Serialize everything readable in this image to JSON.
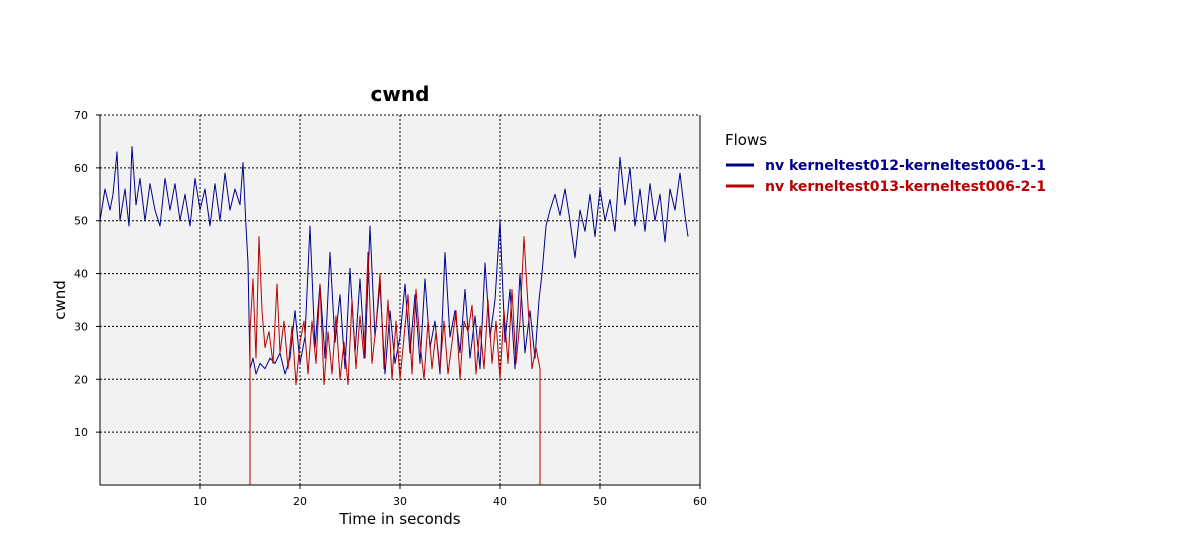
{
  "chart_data": {
    "type": "line",
    "title": "cwnd",
    "xlabel": "Time in seconds",
    "ylabel": "cwnd",
    "xlim": [
      0,
      60
    ],
    "ylim": [
      0,
      70
    ],
    "xticks": [
      10,
      20,
      30,
      40,
      50,
      60
    ],
    "yticks": [
      10,
      20,
      30,
      40,
      50,
      60,
      70
    ],
    "grid": true,
    "legend_title": "Flows",
    "legend_position": "right",
    "colors": {
      "plot_bg": "#f2f2f2",
      "grid": "#000000"
    },
    "series": [
      {
        "name": "nv kerneltest012-kerneltest006-1-1",
        "color": "#00008b",
        "points": [
          [
            0,
            50
          ],
          [
            0.5,
            56
          ],
          [
            1,
            52
          ],
          [
            1.3,
            55
          ],
          [
            1.7,
            63
          ],
          [
            2,
            50
          ],
          [
            2.5,
            56
          ],
          [
            2.9,
            49
          ],
          [
            3.2,
            64
          ],
          [
            3.6,
            53
          ],
          [
            4,
            58
          ],
          [
            4.5,
            50
          ],
          [
            5,
            57
          ],
          [
            5.5,
            52
          ],
          [
            6,
            49
          ],
          [
            6.5,
            58
          ],
          [
            7,
            52
          ],
          [
            7.5,
            57
          ],
          [
            8,
            50
          ],
          [
            8.5,
            55
          ],
          [
            9,
            49
          ],
          [
            9.5,
            58
          ],
          [
            10,
            52
          ],
          [
            10.5,
            56
          ],
          [
            11,
            49
          ],
          [
            11.5,
            57
          ],
          [
            12,
            50
          ],
          [
            12.5,
            59
          ],
          [
            13,
            52
          ],
          [
            13.5,
            56
          ],
          [
            14,
            53
          ],
          [
            14.3,
            61
          ],
          [
            14.6,
            49
          ],
          [
            14.8,
            42
          ],
          [
            15,
            22
          ],
          [
            15.3,
            24
          ],
          [
            15.6,
            21
          ],
          [
            16,
            23
          ],
          [
            16.5,
            22
          ],
          [
            17,
            24
          ],
          [
            17.5,
            23
          ],
          [
            18,
            25
          ],
          [
            18.5,
            21
          ],
          [
            19,
            24
          ],
          [
            19.5,
            33
          ],
          [
            20,
            23
          ],
          [
            20.5,
            28
          ],
          [
            21,
            49
          ],
          [
            21.5,
            26
          ],
          [
            22,
            38
          ],
          [
            22.5,
            24
          ],
          [
            23,
            44
          ],
          [
            23.5,
            27
          ],
          [
            24,
            36
          ],
          [
            24.5,
            22
          ],
          [
            25,
            41
          ],
          [
            25.5,
            25
          ],
          [
            26,
            39
          ],
          [
            26.5,
            24
          ],
          [
            27,
            49
          ],
          [
            27.5,
            28
          ],
          [
            28,
            38
          ],
          [
            28.5,
            21
          ],
          [
            29,
            33
          ],
          [
            29.5,
            23
          ],
          [
            30,
            28
          ],
          [
            30.5,
            38
          ],
          [
            31,
            25
          ],
          [
            31.5,
            36
          ],
          [
            32,
            23
          ],
          [
            32.5,
            39
          ],
          [
            33,
            26
          ],
          [
            33.5,
            31
          ],
          [
            34,
            21
          ],
          [
            34.5,
            44
          ],
          [
            35,
            28
          ],
          [
            35.5,
            33
          ],
          [
            36,
            25
          ],
          [
            36.5,
            37
          ],
          [
            37,
            24
          ],
          [
            37.5,
            32
          ],
          [
            38,
            22
          ],
          [
            38.5,
            42
          ],
          [
            39,
            28
          ],
          [
            39.5,
            35
          ],
          [
            40,
            50
          ],
          [
            40.5,
            27
          ],
          [
            41,
            37
          ],
          [
            41.5,
            22
          ],
          [
            42,
            40
          ],
          [
            42.5,
            25
          ],
          [
            43,
            33
          ],
          [
            43.5,
            24
          ],
          [
            43.9,
            35
          ],
          [
            44.2,
            40
          ],
          [
            44.6,
            49
          ],
          [
            45,
            52
          ],
          [
            45.5,
            55
          ],
          [
            46,
            51
          ],
          [
            46.5,
            56
          ],
          [
            47,
            50
          ],
          [
            47.5,
            43
          ],
          [
            48,
            52
          ],
          [
            48.5,
            48
          ],
          [
            49,
            55
          ],
          [
            49.5,
            47
          ],
          [
            50,
            56
          ],
          [
            50.5,
            50
          ],
          [
            51,
            54
          ],
          [
            51.5,
            48
          ],
          [
            52,
            62
          ],
          [
            52.5,
            53
          ],
          [
            53,
            60
          ],
          [
            53.5,
            49
          ],
          [
            54,
            56
          ],
          [
            54.5,
            48
          ],
          [
            55,
            57
          ],
          [
            55.5,
            50
          ],
          [
            56,
            55
          ],
          [
            56.5,
            46
          ],
          [
            57,
            56
          ],
          [
            57.5,
            52
          ],
          [
            58,
            59
          ],
          [
            58.5,
            51
          ],
          [
            58.8,
            47
          ]
        ]
      },
      {
        "name": "nv kerneltest013-kerneltest006-2-1",
        "color": "#b80000",
        "points": [
          [
            0,
            0
          ],
          [
            15,
            0
          ],
          [
            15,
            29
          ],
          [
            15.3,
            39
          ],
          [
            15.6,
            24
          ],
          [
            15.9,
            47
          ],
          [
            16.2,
            33
          ],
          [
            16.5,
            26
          ],
          [
            16.9,
            29
          ],
          [
            17.3,
            23
          ],
          [
            17.7,
            38
          ],
          [
            18,
            25
          ],
          [
            18.4,
            31
          ],
          [
            18.8,
            22
          ],
          [
            19.2,
            30
          ],
          [
            19.6,
            19
          ],
          [
            20,
            27
          ],
          [
            20.4,
            31
          ],
          [
            20.8,
            21
          ],
          [
            21.2,
            31
          ],
          [
            21.6,
            23
          ],
          [
            22,
            38
          ],
          [
            22.4,
            19
          ],
          [
            22.8,
            29
          ],
          [
            23.2,
            21
          ],
          [
            23.6,
            32
          ],
          [
            24,
            20
          ],
          [
            24.4,
            27
          ],
          [
            24.8,
            19
          ],
          [
            25.2,
            35
          ],
          [
            25.6,
            22
          ],
          [
            26,
            32
          ],
          [
            26.4,
            24
          ],
          [
            26.8,
            44
          ],
          [
            27.2,
            23
          ],
          [
            27.6,
            30
          ],
          [
            28,
            40
          ],
          [
            28.4,
            22
          ],
          [
            28.8,
            35
          ],
          [
            29.2,
            20
          ],
          [
            29.6,
            31
          ],
          [
            30,
            20
          ],
          [
            30.4,
            28
          ],
          [
            30.8,
            36
          ],
          [
            31.2,
            21
          ],
          [
            31.6,
            37
          ],
          [
            32,
            27
          ],
          [
            32.4,
            20
          ],
          [
            32.8,
            31
          ],
          [
            33.2,
            22
          ],
          [
            33.6,
            29
          ],
          [
            34,
            22
          ],
          [
            34.4,
            31
          ],
          [
            34.8,
            21
          ],
          [
            35.2,
            27
          ],
          [
            35.6,
            33
          ],
          [
            36,
            20
          ],
          [
            36.4,
            31
          ],
          [
            36.8,
            29
          ],
          [
            37.2,
            34
          ],
          [
            37.6,
            21
          ],
          [
            38,
            30
          ],
          [
            38.4,
            22
          ],
          [
            38.8,
            35
          ],
          [
            39.2,
            23
          ],
          [
            39.6,
            31
          ],
          [
            40,
            20
          ],
          [
            40.4,
            33
          ],
          [
            40.8,
            23
          ],
          [
            41.2,
            37
          ],
          [
            41.6,
            23
          ],
          [
            42,
            31
          ],
          [
            42.4,
            47
          ],
          [
            42.8,
            34
          ],
          [
            43.2,
            22
          ],
          [
            43.6,
            26
          ],
          [
            44,
            22
          ],
          [
            44,
            0
          ],
          [
            60,
            0
          ]
        ]
      }
    ]
  }
}
